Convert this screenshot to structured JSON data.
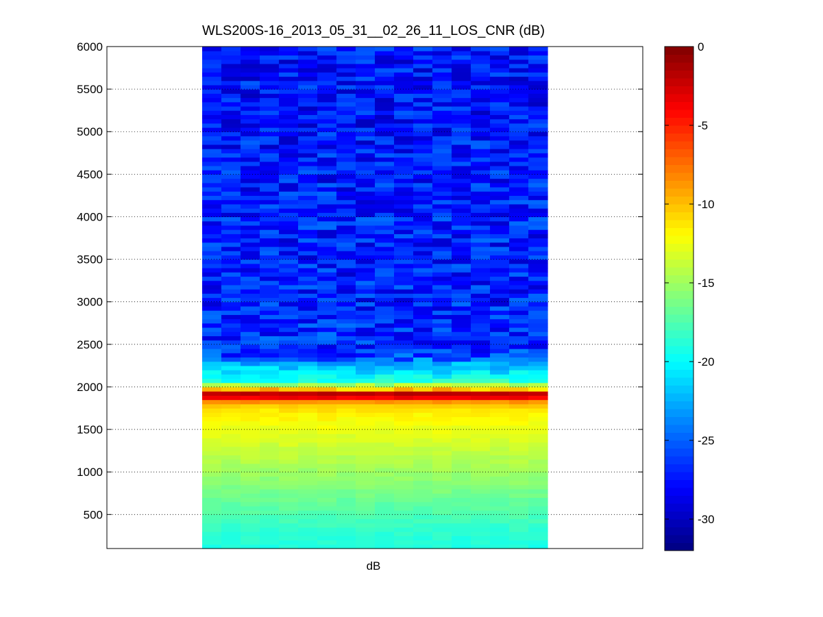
{
  "chart_data": {
    "type": "heatmap",
    "title": "WLS200S-16_2013_05_31__02_26_11_LOS_CNR (dB)",
    "xlabel": "dB",
    "ylabel": "",
    "ylim": [
      100,
      6000
    ],
    "y_ticks": [
      500,
      1000,
      1500,
      2000,
      2500,
      3000,
      3500,
      4000,
      4500,
      5000,
      5500,
      6000
    ],
    "y_tick_labels": [
      "500",
      "1000",
      "1500",
      "2000",
      "2500",
      "3000",
      "3500",
      "4000",
      "4500",
      "5000",
      "5500",
      "6000"
    ],
    "grid": "y-dotted",
    "colormap": "jet",
    "colorbar": {
      "range": [
        -32,
        0
      ],
      "ticks": [
        0,
        -5,
        -10,
        -15,
        -20,
        -25,
        -30
      ],
      "tick_labels": [
        "0",
        "-5",
        "-10",
        "-15",
        "-20",
        "-25",
        "-30"
      ]
    },
    "n_columns": 18,
    "profile": {
      "range_bins": [
        100,
        300,
        500,
        700,
        900,
        1100,
        1300,
        1500,
        1700,
        1800,
        1850,
        1880,
        1920,
        1950,
        1980,
        2000,
        2030,
        2060,
        2100,
        2200,
        2300,
        2350,
        2500,
        3000,
        3500,
        4000,
        4500,
        5000,
        5500,
        6000
      ],
      "cnr_db": [
        -19,
        -18.5,
        -17.5,
        -16.5,
        -15.5,
        -14.5,
        -13.5,
        -12.5,
        -11.5,
        -10,
        -7,
        -3,
        -1,
        -6,
        -11,
        -18,
        -14,
        -18,
        -20,
        -21,
        -23,
        -26,
        -26.5,
        -27,
        -27.2,
        -27,
        -27.3,
        -27.5,
        -27.6,
        -27.5
      ]
    }
  }
}
